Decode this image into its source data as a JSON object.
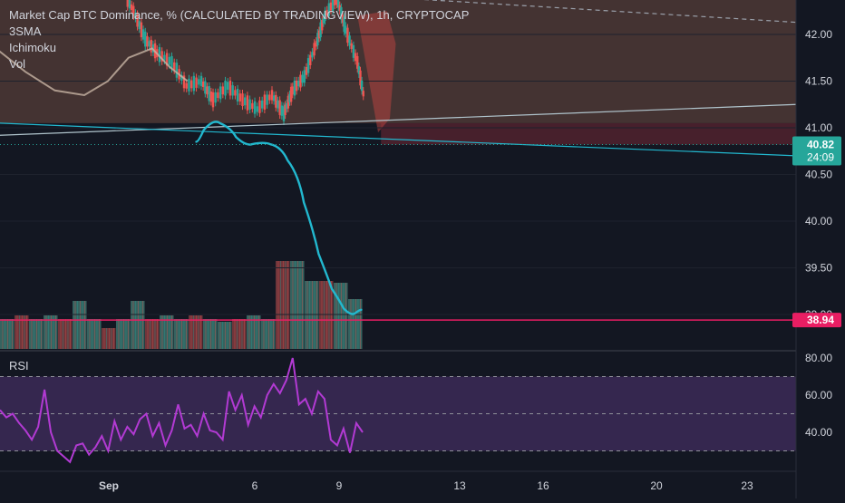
{
  "legend": {
    "title": "Market Cap BTC Dominance, % (CALCULATED BY TRADINGVIEW), 1h, CRYPTOCAP",
    "indicators": [
      "3SMA",
      "Ichimoku",
      "Vol"
    ]
  },
  "rsi_label": "RSI",
  "colors": {
    "background": "#131722",
    "price_up": "#26a69a",
    "price_down": "#ef5350",
    "cloud": "#6d4b3f",
    "cloud_red": "#5a2430",
    "projection": "#22b8cf",
    "support_line": "#e91e63",
    "rsi_line": "#b23ad3",
    "rsi_band": "#3c2a57",
    "axis_text": "#d1d4dc",
    "price_badge": "#26a69a",
    "support_badge": "#e91e63"
  },
  "chart_data": [
    {
      "type": "line",
      "title": "Market Cap BTC Dominance, % (CALCULATED BY TRADINGVIEW), 1h, CRYPTOCAP",
      "y_ticks": [
        "42.00",
        "41.50",
        "41.00",
        "40.50",
        "40.00",
        "39.50",
        "39.00"
      ],
      "x_ticks": [
        "Sep",
        "6",
        "9",
        "13",
        "16",
        "20",
        "23"
      ],
      "ylim": [
        38.6,
        42.3
      ],
      "last_price": "40.82",
      "countdown": "24:09",
      "support_level": "38.94",
      "price_path": [
        [
          0.5,
          42.5
        ],
        [
          0.9,
          42.25
        ],
        [
          1.3,
          41.95
        ],
        [
          1.7,
          41.8
        ],
        [
          2.2,
          41.7
        ],
        [
          2.7,
          41.45
        ],
        [
          3.2,
          41.5
        ],
        [
          3.6,
          41.3
        ],
        [
          4.1,
          41.45
        ],
        [
          4.6,
          41.3
        ],
        [
          5.1,
          41.2
        ],
        [
          5.6,
          41.35
        ],
        [
          6.0,
          41.15
        ],
        [
          6.3,
          41.4
        ],
        [
          6.7,
          41.55
        ],
        [
          7.1,
          41.9
        ],
        [
          7.4,
          42.2
        ],
        [
          7.8,
          42.4
        ],
        [
          8.1,
          42.05
        ],
        [
          8.5,
          41.7
        ],
        [
          8.8,
          41.2
        ],
        [
          9.1,
          40.85
        ],
        [
          9.3,
          40.7
        ],
        [
          9.5,
          40.85
        ],
        [
          9.7,
          40.82
        ]
      ],
      "projection_path": [
        [
          9.8,
          40.85
        ],
        [
          10.3,
          41.1
        ],
        [
          10.9,
          41.0
        ],
        [
          11.4,
          40.8
        ],
        [
          12.0,
          40.85
        ],
        [
          12.6,
          40.8
        ],
        [
          13.2,
          40.5
        ],
        [
          13.7,
          39.9
        ],
        [
          14.2,
          39.4
        ],
        [
          14.6,
          39.15
        ],
        [
          15.0,
          38.98
        ],
        [
          15.4,
          39.05
        ]
      ],
      "trendlines": [
        {
          "name": "lower-rising",
          "from": [
            -2,
            40.92
          ],
          "to": [
            21.3,
            41.25
          ]
        },
        {
          "name": "falling",
          "from": [
            -2,
            41.05
          ],
          "to": [
            21.3,
            40.7
          ]
        },
        {
          "name": "dashed-resistance",
          "from": [
            7.8,
            42.55
          ],
          "to": [
            21.3,
            42.13
          ]
        }
      ],
      "sma_path": [
        [
          2.0,
          42.1
        ],
        [
          3.0,
          41.85
        ],
        [
          4.0,
          41.6
        ],
        [
          5.0,
          41.4
        ],
        [
          6.0,
          41.35
        ],
        [
          6.8,
          41.5
        ],
        [
          7.5,
          41.75
        ],
        [
          8.3,
          41.85
        ],
        [
          8.9,
          41.65
        ],
        [
          9.5,
          41.5
        ]
      ]
    },
    {
      "type": "line",
      "title": "RSI",
      "y_ticks": [
        "80.00",
        "60.00",
        "40.00"
      ],
      "ylim": [
        20,
        90
      ],
      "band": [
        30,
        70
      ],
      "mid": 50,
      "values": [
        52,
        48,
        50,
        45,
        41,
        36,
        43,
        63,
        40,
        30,
        27,
        24,
        33,
        34,
        28,
        32,
        38,
        30,
        46,
        36,
        43,
        39,
        47,
        50,
        38,
        45,
        33,
        41,
        55,
        42,
        44,
        38,
        50,
        41,
        40,
        36,
        62,
        52,
        60,
        44,
        54,
        48,
        60,
        66,
        61,
        68,
        80,
        55,
        58,
        50,
        62,
        58,
        36,
        33,
        42,
        29,
        45,
        40
      ]
    }
  ]
}
